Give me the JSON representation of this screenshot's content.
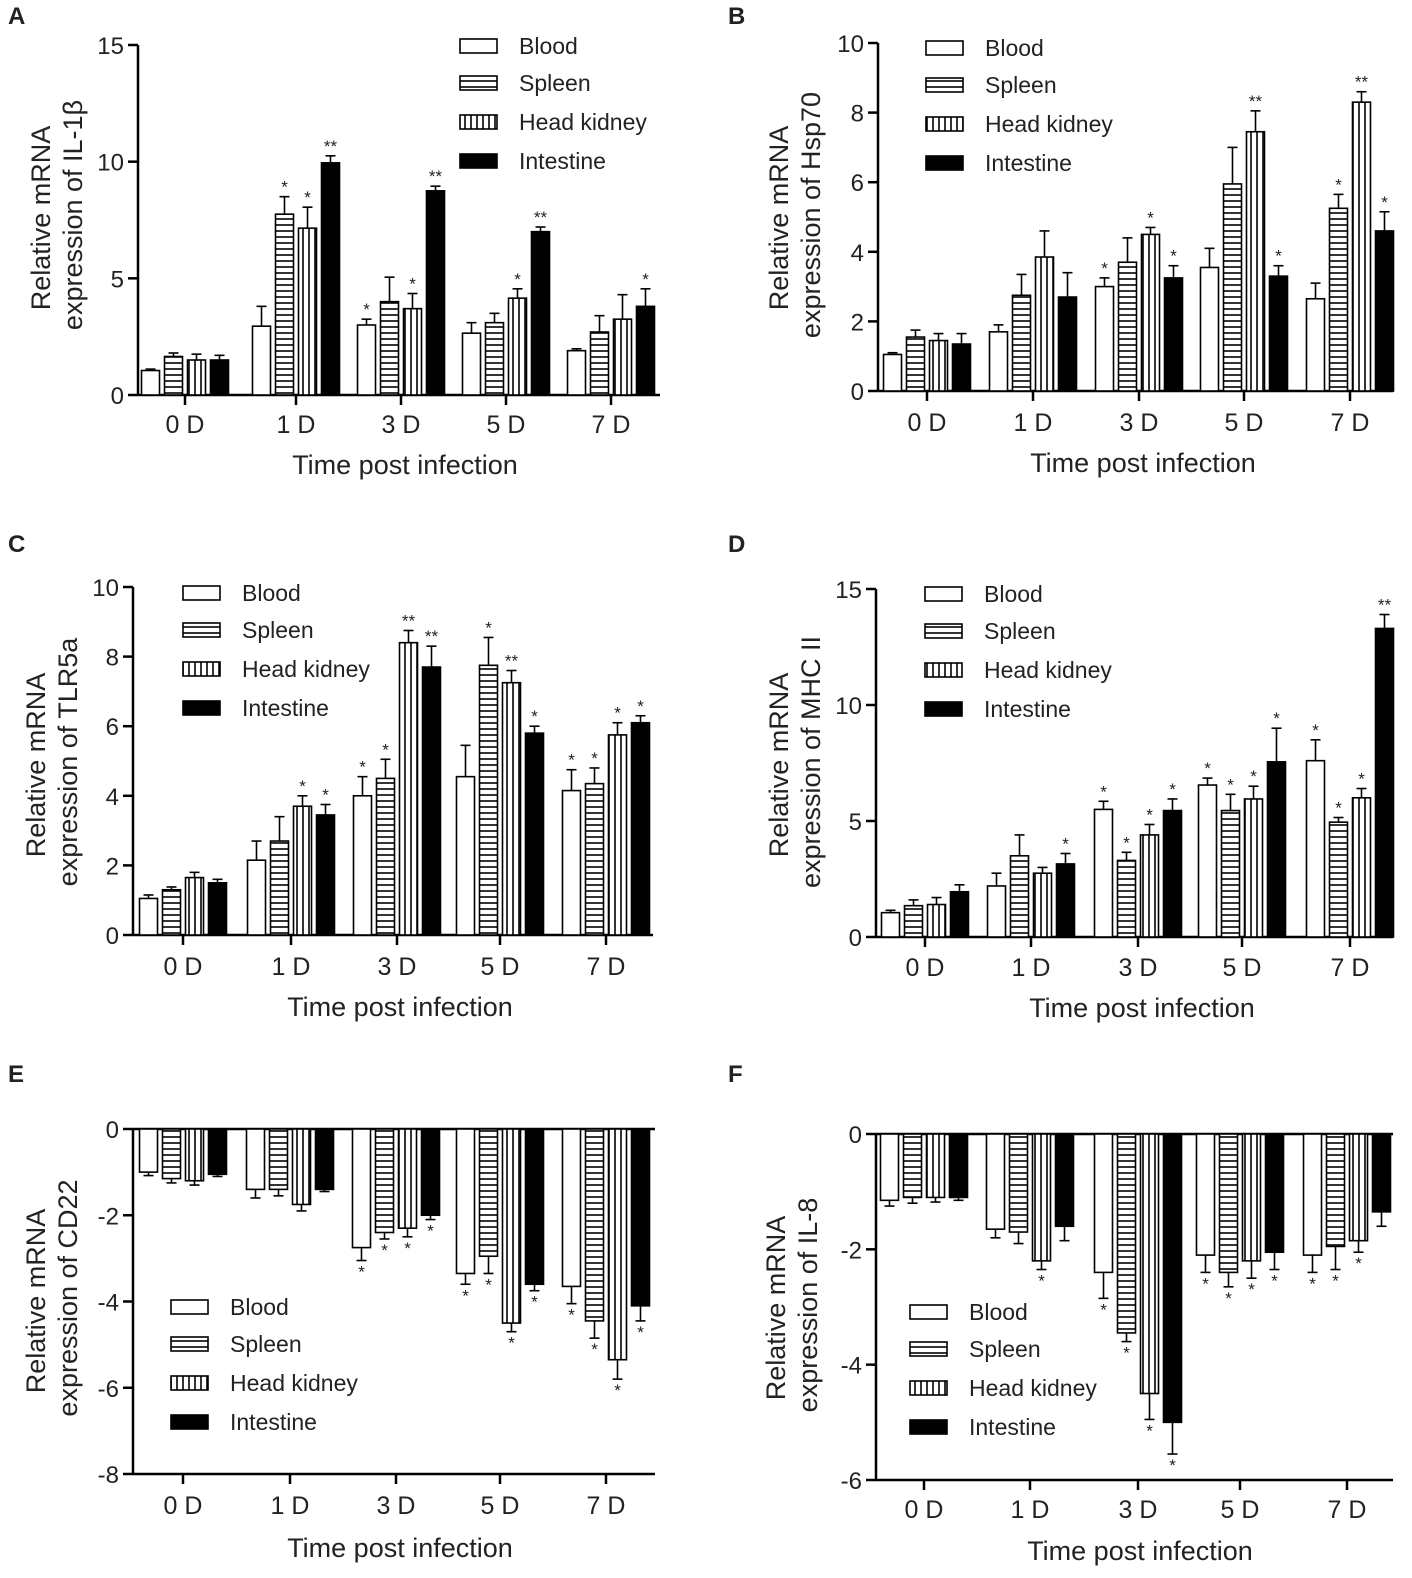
{
  "colors": {
    "ink": "#000000",
    "bar_fill": "#ffffff",
    "text": "#222222"
  },
  "legend_labels": [
    "Blood",
    "Spleen",
    "Head kidney",
    "Intestine"
  ],
  "chart_data": [
    {
      "panel": "A",
      "type": "bar",
      "ylabel_line1": "Relative mRNA",
      "ylabel_line2": "expression of IL-1β",
      "xlabel": "Time post infection",
      "categories": [
        "0 D",
        "1 D",
        "3 D",
        "5 D",
        "7 D"
      ],
      "ylim": [
        0,
        15
      ],
      "yticks": [
        "0",
        "5",
        "10",
        "15"
      ],
      "ytick_values": [
        0,
        5,
        10,
        15
      ],
      "legend_position": "top-right",
      "series": [
        {
          "name": "Blood",
          "values": [
            1.05,
            2.95,
            3.0,
            2.65,
            1.9
          ],
          "errors": [
            0.06,
            0.85,
            0.25,
            0.45,
            0.08
          ],
          "sig": [
            "",
            "",
            "*",
            "",
            ""
          ]
        },
        {
          "name": "Spleen",
          "values": [
            1.65,
            7.75,
            4.0,
            3.1,
            2.7
          ],
          "errors": [
            0.15,
            0.75,
            1.05,
            0.4,
            0.7
          ],
          "sig": [
            "",
            "*",
            "",
            "",
            ""
          ]
        },
        {
          "name": "Head kidney",
          "values": [
            1.5,
            7.15,
            3.7,
            4.15,
            3.25
          ],
          "errors": [
            0.25,
            0.9,
            0.65,
            0.4,
            1.05
          ],
          "sig": [
            "",
            "*",
            "*",
            "*",
            ""
          ]
        },
        {
          "name": "Intestine",
          "values": [
            1.5,
            9.95,
            8.75,
            7.0,
            3.8
          ],
          "errors": [
            0.2,
            0.3,
            0.2,
            0.2,
            0.75
          ],
          "sig": [
            "",
            "**",
            "**",
            "**",
            "*"
          ]
        }
      ]
    },
    {
      "panel": "B",
      "type": "bar",
      "ylabel_line1": "Relative mRNA",
      "ylabel_line2": "expression of Hsp70",
      "xlabel": "Time post infection",
      "categories": [
        "0 D",
        "1 D",
        "3 D",
        "5 D",
        "7 D"
      ],
      "ylim": [
        0,
        10
      ],
      "yticks": [
        "0",
        "2",
        "4",
        "6",
        "8",
        "10"
      ],
      "ytick_values": [
        0,
        2,
        4,
        6,
        8,
        10
      ],
      "legend_position": "top-right",
      "series": [
        {
          "name": "Blood",
          "values": [
            1.05,
            1.7,
            3.0,
            3.55,
            2.65
          ],
          "errors": [
            0.05,
            0.2,
            0.25,
            0.55,
            0.45
          ],
          "sig": [
            "",
            "",
            "*",
            "",
            ""
          ]
        },
        {
          "name": "Spleen",
          "values": [
            1.55,
            2.75,
            3.7,
            5.95,
            5.25
          ],
          "errors": [
            0.2,
            0.6,
            0.7,
            1.05,
            0.4
          ],
          "sig": [
            "",
            "",
            "",
            "",
            "*"
          ]
        },
        {
          "name": "Head kidney",
          "values": [
            1.45,
            3.85,
            4.5,
            7.45,
            8.3
          ],
          "errors": [
            0.2,
            0.75,
            0.2,
            0.6,
            0.3
          ],
          "sig": [
            "",
            "",
            "*",
            "**",
            "**"
          ]
        },
        {
          "name": "Intestine",
          "values": [
            1.35,
            2.7,
            3.25,
            3.3,
            4.6
          ],
          "errors": [
            0.3,
            0.7,
            0.35,
            0.3,
            0.55
          ],
          "sig": [
            "",
            "",
            "*",
            "*",
            "*"
          ]
        }
      ]
    },
    {
      "panel": "C",
      "type": "bar",
      "ylabel_line1": "Relative mRNA",
      "ylabel_line2": "expression of TLR5a",
      "xlabel": "Time post infection",
      "categories": [
        "0 D",
        "1 D",
        "3 D",
        "5 D",
        "7 D"
      ],
      "ylim": [
        0,
        10
      ],
      "yticks": [
        "0",
        "2",
        "4",
        "6",
        "8",
        "10"
      ],
      "ytick_values": [
        0,
        2,
        4,
        6,
        8,
        10
      ],
      "legend_position": "top-left",
      "series": [
        {
          "name": "Blood",
          "values": [
            1.05,
            2.15,
            4.0,
            4.55,
            4.15
          ],
          "errors": [
            0.1,
            0.55,
            0.55,
            0.9,
            0.6
          ],
          "sig": [
            "",
            "",
            "*",
            "",
            "*"
          ]
        },
        {
          "name": "Spleen",
          "values": [
            1.3,
            2.7,
            4.5,
            7.75,
            4.35
          ],
          "errors": [
            0.08,
            0.7,
            0.55,
            0.8,
            0.45
          ],
          "sig": [
            "",
            "",
            "*",
            "*",
            "*"
          ]
        },
        {
          "name": "Head kidney",
          "values": [
            1.65,
            3.7,
            8.4,
            7.25,
            5.75
          ],
          "errors": [
            0.15,
            0.3,
            0.35,
            0.35,
            0.35
          ],
          "sig": [
            "",
            "*",
            "**",
            "**",
            "*"
          ]
        },
        {
          "name": "Intestine",
          "values": [
            1.5,
            3.45,
            7.7,
            5.8,
            6.1
          ],
          "errors": [
            0.1,
            0.3,
            0.6,
            0.2,
            0.2
          ],
          "sig": [
            "",
            "*",
            "**",
            "*",
            "*"
          ]
        }
      ]
    },
    {
      "panel": "D",
      "type": "bar",
      "ylabel_line1": "Relative mRNA",
      "ylabel_line2": "expression of MHC II",
      "xlabel": "Time post infection",
      "categories": [
        "0 D",
        "1 D",
        "3 D",
        "5 D",
        "7 D"
      ],
      "ylim": [
        0,
        15
      ],
      "yticks": [
        "0",
        "5",
        "10",
        "15"
      ],
      "ytick_values": [
        0,
        5,
        10,
        15
      ],
      "legend_position": "top-left",
      "series": [
        {
          "name": "Blood",
          "values": [
            1.05,
            2.2,
            5.5,
            6.55,
            7.6
          ],
          "errors": [
            0.1,
            0.55,
            0.35,
            0.3,
            0.9
          ],
          "sig": [
            "",
            "",
            "*",
            "*",
            "*"
          ]
        },
        {
          "name": "Spleen",
          "values": [
            1.35,
            3.5,
            3.3,
            5.45,
            4.95
          ],
          "errors": [
            0.25,
            0.9,
            0.35,
            0.7,
            0.2
          ],
          "sig": [
            "",
            "",
            "*",
            "*",
            "*"
          ]
        },
        {
          "name": "Head kidney",
          "values": [
            1.4,
            2.75,
            4.4,
            5.95,
            6.0
          ],
          "errors": [
            0.3,
            0.25,
            0.45,
            0.55,
            0.4
          ],
          "sig": [
            "",
            "",
            "*",
            "*",
            "*"
          ]
        },
        {
          "name": "Intestine",
          "values": [
            1.95,
            3.15,
            5.45,
            7.55,
            13.3
          ],
          "errors": [
            0.3,
            0.45,
            0.5,
            1.45,
            0.6
          ],
          "sig": [
            "",
            "*",
            "*",
            "*",
            "**"
          ]
        }
      ]
    },
    {
      "panel": "E",
      "type": "bar",
      "ylabel_line1": "Relative mRNA",
      "ylabel_line2": "expression of CD22",
      "xlabel": "Time post infection",
      "categories": [
        "0 D",
        "1 D",
        "3 D",
        "5 D",
        "7 D"
      ],
      "ylim": [
        -8,
        0
      ],
      "yticks": [
        "-8",
        "-6",
        "-4",
        "-2",
        "0"
      ],
      "ytick_values": [
        -8,
        -6,
        -4,
        -2,
        0
      ],
      "legend_position": "bottom-left",
      "series": [
        {
          "name": "Blood",
          "values": [
            -1.0,
            -1.4,
            -2.75,
            -3.35,
            -3.65
          ],
          "errors": [
            0.08,
            0.2,
            0.3,
            0.25,
            0.4
          ],
          "sig": [
            "",
            "",
            "*",
            "*",
            "*"
          ]
        },
        {
          "name": "Spleen",
          "values": [
            -1.15,
            -1.4,
            -2.4,
            -2.95,
            -4.45
          ],
          "errors": [
            0.1,
            0.15,
            0.15,
            0.4,
            0.4
          ],
          "sig": [
            "",
            "",
            "*",
            "*",
            "*"
          ]
        },
        {
          "name": "Head kidney",
          "values": [
            -1.2,
            -1.75,
            -2.3,
            -4.5,
            -5.35
          ],
          "errors": [
            0.1,
            0.15,
            0.2,
            0.2,
            0.45
          ],
          "sig": [
            "",
            "",
            "*",
            "*",
            "*"
          ]
        },
        {
          "name": "Intestine",
          "values": [
            -1.05,
            -1.4,
            -2.0,
            -3.6,
            -4.1
          ],
          "errors": [
            0.05,
            0.05,
            0.1,
            0.15,
            0.35
          ],
          "sig": [
            "",
            "",
            "*",
            "*",
            "*"
          ]
        }
      ]
    },
    {
      "panel": "F",
      "type": "bar",
      "ylabel_line1": "Relative mRNA",
      "ylabel_line2": "expression of IL-8",
      "xlabel": "Time post infection",
      "categories": [
        "0 D",
        "1 D",
        "3 D",
        "5 D",
        "7 D"
      ],
      "ylim": [
        -6,
        0
      ],
      "yticks": [
        "-6",
        "-4",
        "-2",
        "0"
      ],
      "ytick_values": [
        -6,
        -4,
        -2,
        0
      ],
      "legend_position": "bottom-left",
      "series": [
        {
          "name": "Blood",
          "values": [
            -1.15,
            -1.65,
            -2.4,
            -2.1,
            -2.1
          ],
          "errors": [
            0.1,
            0.15,
            0.45,
            0.3,
            0.3
          ],
          "sig": [
            "",
            "",
            "*",
            "*",
            "*"
          ]
        },
        {
          "name": "Spleen",
          "values": [
            -1.1,
            -1.7,
            -3.45,
            -2.4,
            -1.95
          ],
          "errors": [
            0.1,
            0.2,
            0.15,
            0.25,
            0.4
          ],
          "sig": [
            "",
            "",
            "*",
            "*",
            "*"
          ]
        },
        {
          "name": "Head kidney",
          "values": [
            -1.1,
            -2.2,
            -4.5,
            -2.2,
            -1.85
          ],
          "errors": [
            0.08,
            0.15,
            0.45,
            0.3,
            0.2
          ],
          "sig": [
            "",
            "*",
            "*",
            "*",
            "*"
          ]
        },
        {
          "name": "Intestine",
          "values": [
            -1.1,
            -1.6,
            -5.0,
            -2.05,
            -1.35
          ],
          "errors": [
            0.05,
            0.25,
            0.55,
            0.3,
            0.25
          ],
          "sig": [
            "",
            "",
            "*",
            "*",
            ""
          ]
        }
      ]
    }
  ]
}
